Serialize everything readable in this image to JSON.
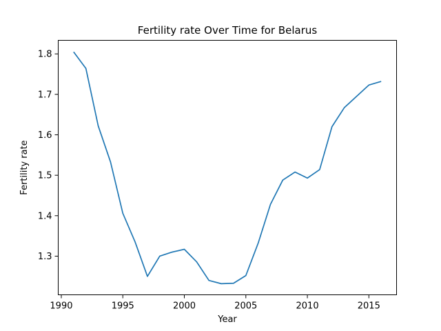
{
  "chart_data": {
    "type": "line",
    "title": "Fertility rate Over Time for Belarus",
    "xlabel": "Year",
    "ylabel": "Fertility rate",
    "xlim": [
      1989.75,
      2017.25
    ],
    "ylim": [
      1.2045,
      1.8335
    ],
    "x_ticks": [
      1990,
      1995,
      2000,
      2005,
      2010,
      2015
    ],
    "y_ticks": [
      1.3,
      1.4,
      1.5,
      1.6,
      1.7,
      1.8
    ],
    "grid": false,
    "line_color": "#1f77b4",
    "series": [
      {
        "x": [
          1991,
          1992,
          1993,
          1994,
          1995,
          1996,
          1997,
          1998,
          1999,
          2000,
          2001,
          2002,
          2003,
          2004,
          2005,
          2006,
          2007,
          2008,
          2009,
          2010,
          2011,
          2012,
          2013,
          2014,
          2015,
          2016
        ],
        "values": [
          1.805,
          1.764,
          1.622,
          1.533,
          1.406,
          1.335,
          1.25,
          1.3,
          1.31,
          1.317,
          1.286,
          1.24,
          1.232,
          1.233,
          1.252,
          1.332,
          1.428,
          1.488,
          1.508,
          1.493,
          1.514,
          1.62,
          1.667,
          1.695,
          1.723,
          1.732
        ]
      }
    ]
  }
}
